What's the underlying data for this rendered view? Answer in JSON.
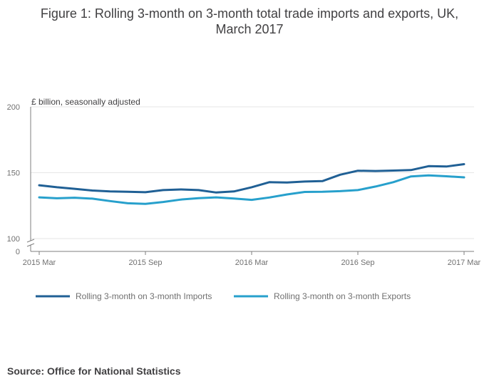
{
  "title": {
    "line1": "Figure 1: Rolling 3-month on 3-month total trade imports and exports, UK,",
    "line2": "March 2017"
  },
  "source": "Source: Office for National Statistics",
  "colors": {
    "imports": "#206095",
    "exports": "#27a0cc",
    "grid": "#e6e6e6",
    "axis": "#7f7f7f"
  },
  "chart_data": {
    "type": "line",
    "title": "Figure 1: Rolling 3-month on 3-month total trade imports and exports, UK, March 2017",
    "ylabel": "£ billion, seasonally adjusted",
    "xlabel": "",
    "ylim": [
      0,
      200
    ],
    "y_axis_break": [
      0,
      100
    ],
    "yticks": [
      0,
      100,
      150,
      200
    ],
    "x": [
      "2015 Mar",
      "2015 Apr",
      "2015 May",
      "2015 Jun",
      "2015 Jul",
      "2015 Aug",
      "2015 Sep",
      "2015 Oct",
      "2015 Nov",
      "2015 Dec",
      "2016 Jan",
      "2016 Feb",
      "2016 Mar",
      "2016 Apr",
      "2016 May",
      "2016 Jun",
      "2016 Jul",
      "2016 Aug",
      "2016 Sep",
      "2016 Oct",
      "2016 Nov",
      "2016 Dec",
      "2017 Jan",
      "2017 Feb",
      "2017 Mar"
    ],
    "xticks": [
      "2015 Mar",
      "2015 Sep",
      "2016 Mar",
      "2016 Sep",
      "2017 Mar"
    ],
    "grid": true,
    "legend_position": "bottom",
    "series": [
      {
        "name": "Rolling 3-month on 3-month Imports",
        "values": [
          140.5,
          139.0,
          137.8,
          136.5,
          135.8,
          135.5,
          135.2,
          136.8,
          137.3,
          136.8,
          135.0,
          135.8,
          139.0,
          142.8,
          142.6,
          143.3,
          143.6,
          148.5,
          151.5,
          151.3,
          151.6,
          152.0,
          155.0,
          154.7,
          156.5
        ]
      },
      {
        "name": "Rolling 3-month on 3-month Exports",
        "values": [
          131.3,
          130.6,
          131.0,
          130.3,
          128.5,
          126.8,
          126.4,
          127.8,
          129.6,
          130.7,
          131.3,
          130.4,
          129.4,
          131.2,
          133.5,
          135.4,
          135.5,
          136.0,
          136.8,
          139.5,
          142.8,
          147.2,
          148.0,
          147.3,
          146.5
        ]
      }
    ]
  }
}
